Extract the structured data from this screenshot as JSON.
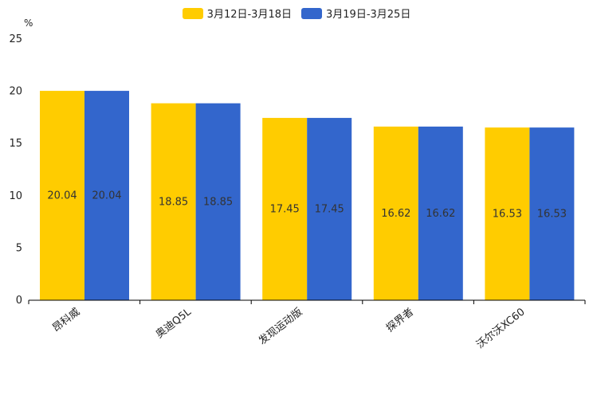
{
  "chart_data": {
    "type": "bar",
    "unit": "%",
    "categories": [
      "昂科威",
      "奥迪Q5L",
      "发现运动版",
      "探界者",
      "沃尔沃XC60"
    ],
    "series": [
      {
        "name": "3月12日-3月18日",
        "color": "#ffcc00",
        "values": [
          20.04,
          18.85,
          17.45,
          16.62,
          16.53
        ]
      },
      {
        "name": "3月19日-3月25日",
        "color": "#3366cc",
        "values": [
          20.04,
          18.85,
          17.45,
          16.62,
          16.53
        ]
      }
    ],
    "data_labels": [
      [
        "20.04",
        "18.85",
        "17.45",
        "16.62",
        "16.53"
      ],
      [
        "20.04",
        "18.85",
        "17.45",
        "16.62",
        "16.53"
      ]
    ],
    "yticks": [
      "0",
      "5",
      "10",
      "15",
      "20",
      "25"
    ],
    "ylim": [
      0,
      25
    ],
    "legend_position": "top-center",
    "grid": false
  }
}
